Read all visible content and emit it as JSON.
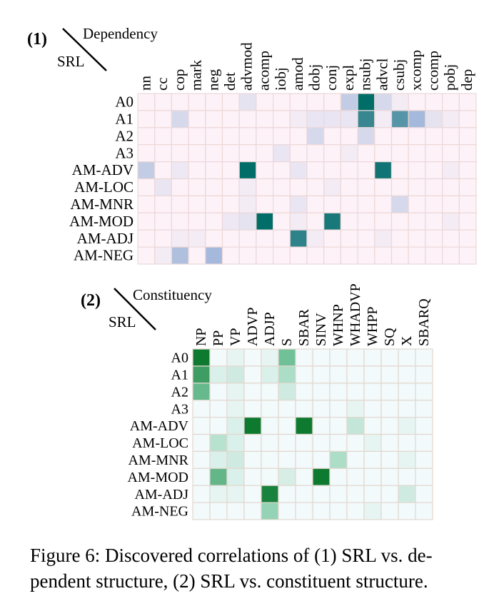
{
  "chart_data": [
    {
      "type": "heatmap",
      "panel_label": "(1)",
      "corner_col_label": "Dependency",
      "corner_row_label": "SRL",
      "columns": [
        "nn",
        "cc",
        "cop",
        "mark",
        "neg",
        "det",
        "advmod",
        "acomp",
        "iobj",
        "amod",
        "dobj",
        "conj",
        "expl",
        "nsubj",
        "advcl",
        "csubj",
        "xcomp",
        "ccomp",
        "pobj",
        "dep"
      ],
      "rows": [
        "A0",
        "A1",
        "A2",
        "A3",
        "AM-ADV",
        "AM-LOC",
        "AM-MNR",
        "AM-MOD",
        "AM-ADJ",
        "AM-NEG"
      ],
      "values": [
        [
          0,
          0,
          0,
          0,
          0,
          0,
          0.12,
          0,
          0,
          0,
          0,
          0,
          0.3,
          1.0,
          0.2,
          0.05,
          0,
          0,
          0,
          0
        ],
        [
          0,
          0,
          0.2,
          0,
          0,
          0,
          0,
          0,
          0,
          0.05,
          0.1,
          0.1,
          0.1,
          0.82,
          0.05,
          0.72,
          0.45,
          0.12,
          0.05,
          0
        ],
        [
          0,
          0,
          0,
          0,
          0,
          0,
          0,
          0,
          0,
          0,
          0.2,
          0,
          0,
          0.2,
          0,
          0,
          0,
          0,
          0,
          0
        ],
        [
          0,
          0,
          0,
          0,
          0,
          0,
          0,
          0,
          0.1,
          0,
          0,
          0,
          0.05,
          0,
          0,
          0,
          0,
          0,
          0,
          0
        ],
        [
          0.3,
          0,
          0.08,
          0,
          0,
          0,
          1.0,
          0,
          0,
          0.1,
          0,
          0,
          0,
          0,
          0.95,
          0,
          0,
          0,
          0.05,
          0
        ],
        [
          0,
          0.1,
          0,
          0,
          0,
          0,
          0.05,
          0,
          0,
          0,
          0,
          0.05,
          0,
          0,
          0,
          0,
          0,
          0,
          0,
          0
        ],
        [
          0,
          0,
          0,
          0,
          0,
          0,
          0.05,
          0,
          0,
          0.1,
          0,
          0,
          0,
          0,
          0,
          0.2,
          0,
          0,
          0,
          0
        ],
        [
          0,
          0,
          0,
          0,
          0,
          0.08,
          0.12,
          1.0,
          0,
          0.05,
          0,
          0.92,
          0,
          0,
          0,
          0,
          0,
          0,
          0.05,
          0
        ],
        [
          0,
          0,
          0.05,
          0.05,
          0,
          0,
          0,
          0,
          0,
          0.85,
          0.05,
          0,
          0,
          0,
          0.05,
          0,
          0,
          0,
          0,
          0
        ],
        [
          0,
          0.05,
          0.4,
          0,
          0.45,
          0,
          0,
          0,
          0,
          0,
          0,
          0,
          0,
          0,
          0,
          0,
          0,
          0,
          0,
          0
        ]
      ],
      "colors": {
        "low": "#fdf2f8",
        "mid": "#9ab3d8",
        "high": "#006d68",
        "grid": "#ecd8d8"
      }
    },
    {
      "type": "heatmap",
      "panel_label": "(2)",
      "corner_col_label": "Constituency",
      "corner_row_label": "SRL",
      "columns": [
        "NP",
        "PP",
        "VP",
        "ADVP",
        "ADJP",
        "S",
        "SBAR",
        "SINV",
        "WHNP",
        "WHADVP",
        "WHPP",
        "SQ",
        "X",
        "SBARQ"
      ],
      "rows": [
        "A0",
        "A1",
        "A2",
        "A3",
        "AM-ADV",
        "AM-LOC",
        "AM-MNR",
        "AM-MOD",
        "AM-ADJ",
        "AM-NEG"
      ],
      "values": [
        [
          1.0,
          0,
          0.05,
          0,
          0.05,
          0.55,
          0,
          0,
          0,
          0,
          0,
          0,
          0,
          0
        ],
        [
          0.78,
          0.1,
          0.15,
          0,
          0.1,
          0.3,
          0,
          0,
          0,
          0,
          0,
          0,
          0,
          0
        ],
        [
          0.6,
          0,
          0.05,
          0,
          0,
          0.15,
          0,
          0,
          0,
          0,
          0,
          0,
          0,
          0
        ],
        [
          0,
          0,
          0.05,
          0,
          0,
          0,
          0,
          0,
          0,
          0.05,
          0,
          0,
          0,
          0
        ],
        [
          0,
          0,
          0.1,
          1.0,
          0,
          0,
          1.0,
          0,
          0,
          0.2,
          0,
          0,
          0.05,
          0
        ],
        [
          0,
          0.25,
          0.1,
          0,
          0,
          0,
          0,
          0,
          0,
          0,
          0.05,
          0,
          0,
          0
        ],
        [
          0,
          0.1,
          0.15,
          0,
          0,
          0,
          0,
          0,
          0.3,
          0,
          0,
          0,
          0.05,
          0
        ],
        [
          0,
          0.62,
          0.1,
          0,
          0,
          0.12,
          0,
          1.0,
          0,
          0,
          0,
          0,
          0,
          0
        ],
        [
          0,
          0.05,
          0.05,
          0,
          0.95,
          0,
          0,
          0,
          0,
          0,
          0,
          0,
          0.15,
          0
        ],
        [
          0,
          0,
          0,
          0,
          0.4,
          0,
          0,
          0,
          0,
          0,
          0.05,
          0,
          0,
          0
        ]
      ],
      "colors": {
        "low": "#f2fafb",
        "mid": "#7cc9a4",
        "high": "#0e7a30",
        "grid": "#e3d7cf"
      }
    }
  ],
  "caption": {
    "line1": "Figure 6: Discovered correlations of (1) SRL vs. de-",
    "line2": "pendent structure, (2) SRL vs. constituent structure."
  }
}
